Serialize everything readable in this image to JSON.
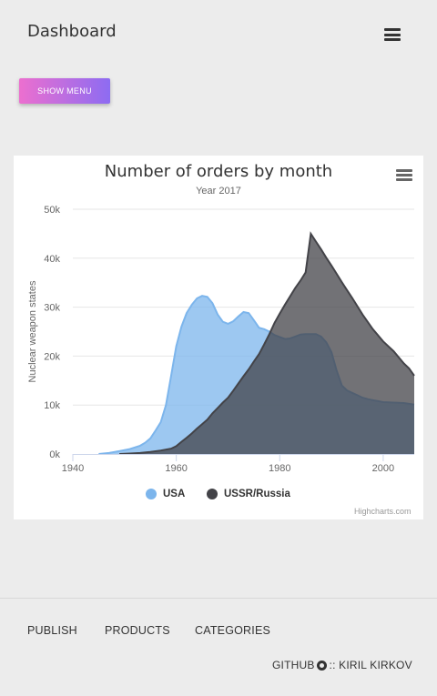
{
  "header": {
    "title": "Dashboard",
    "menu_icon": "hamburger-icon"
  },
  "actions": {
    "show_menu_label": "SHOW MENU"
  },
  "colors": {
    "usa": "#7cb5ec",
    "ussr": "#434348",
    "button_gradient_start": "#ec6fcf",
    "button_gradient_end": "#8d6cf2"
  },
  "chart_data": {
    "type": "area",
    "title": "Number of orders by month",
    "subtitle": "Year 2017",
    "ylabel": "Nuclear weapon states",
    "xlabel": "",
    "xlim": [
      1940,
      2006
    ],
    "ylim": [
      0,
      50000
    ],
    "x_ticks": [
      1940,
      1960,
      1980,
      2000
    ],
    "x_tick_labels": [
      "1940",
      "1960",
      "1980",
      "2000"
    ],
    "y_ticks": [
      0,
      10000,
      20000,
      30000,
      40000,
      50000
    ],
    "y_tick_labels": [
      "0k",
      "10k",
      "20k",
      "30k",
      "40k",
      "50k"
    ],
    "grid": true,
    "legend_position": "bottom-center",
    "credits": "Highcharts.com",
    "series": [
      {
        "name": "USA",
        "x": [
          1945,
          1947,
          1949,
          1951,
          1953,
          1954,
          1955,
          1956,
          1957,
          1958,
          1959,
          1960,
          1961,
          1962,
          1963,
          1964,
          1965,
          1966,
          1967,
          1968,
          1969,
          1970,
          1971,
          1972,
          1973,
          1974,
          1975,
          1976,
          1977,
          1978,
          1979,
          1980,
          1981,
          1982,
          1983,
          1984,
          1985,
          1986,
          1987,
          1988,
          1989,
          1990,
          1991,
          1992,
          1993,
          1994,
          1995,
          1996,
          1997,
          1998,
          1999,
          2000,
          2002,
          2004,
          2006
        ],
        "values": [
          0,
          200,
          600,
          1000,
          1700,
          2300,
          3200,
          4800,
          6500,
          10000,
          16000,
          22000,
          26000,
          28800,
          30500,
          31800,
          32300,
          32100,
          30800,
          28500,
          27000,
          26600,
          27100,
          28100,
          29000,
          28800,
          27300,
          25800,
          25500,
          25000,
          24300,
          23900,
          23500,
          23600,
          24000,
          24400,
          24500,
          24500,
          24500,
          24000,
          22800,
          20800,
          17000,
          14000,
          13000,
          12500,
          12000,
          11500,
          11200,
          11000,
          10800,
          10600,
          10500,
          10400,
          10100
        ]
      },
      {
        "name": "USSR/Russia",
        "x": [
          1949,
          1951,
          1953,
          1955,
          1957,
          1959,
          1960,
          1961,
          1962,
          1963,
          1964,
          1965,
          1966,
          1967,
          1968,
          1969,
          1970,
          1971,
          1972,
          1973,
          1974,
          1975,
          1976,
          1977,
          1978,
          1979,
          1980,
          1981,
          1982,
          1983,
          1984,
          1985,
          1986,
          1987,
          1988,
          1989,
          1990,
          1991,
          1992,
          1993,
          1994,
          1995,
          1996,
          1998,
          2000,
          2002,
          2004,
          2005,
          2006
        ],
        "values": [
          0,
          100,
          200,
          400,
          700,
          1100,
          1600,
          2500,
          3300,
          4200,
          5200,
          6100,
          7000,
          8300,
          9400,
          10500,
          11500,
          12900,
          14400,
          15900,
          17300,
          18900,
          20400,
          22400,
          24500,
          26800,
          28700,
          30500,
          32200,
          33900,
          35400,
          37100,
          45000,
          43400,
          41800,
          40100,
          38500,
          36800,
          35100,
          33500,
          31900,
          30200,
          28500,
          25500,
          23000,
          21000,
          18500,
          17500,
          16000
        ]
      }
    ]
  },
  "footer": {
    "links": [
      "PUBLISH",
      "PRODUCTS",
      "CATEGORIES"
    ],
    "credit_prefix": "GITHUB",
    "credit_suffix": ":: KIRIL KIRKOV",
    "credit_icon": "github-icon"
  }
}
